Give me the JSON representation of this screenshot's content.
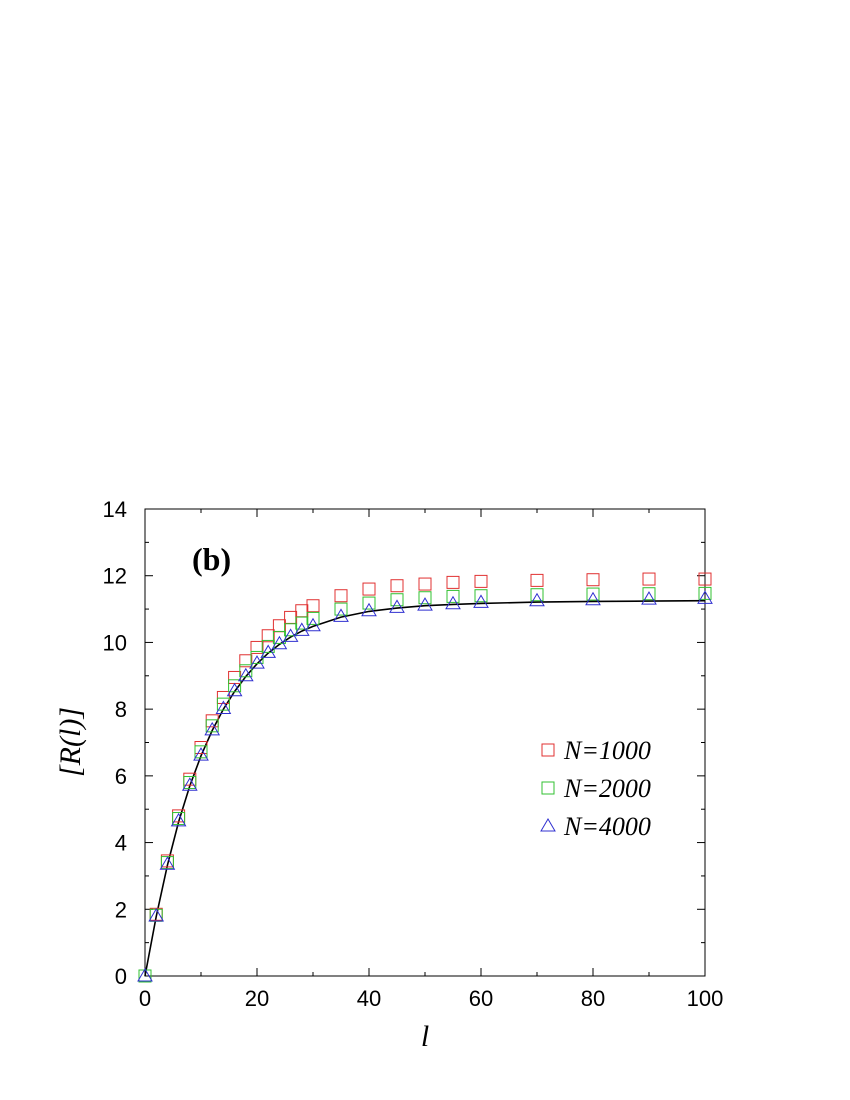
{
  "chart_data": {
    "type": "scatter",
    "panel_label": "(b)",
    "xlabel": "l",
    "ylabel": "[R(l)]",
    "xlim": [
      0,
      100
    ],
    "ylim": [
      0,
      14
    ],
    "x_ticks": [
      "0",
      "20",
      "40",
      "60",
      "80",
      "100"
    ],
    "y_ticks": [
      "0",
      "2",
      "4",
      "6",
      "8",
      "10",
      "12",
      "14"
    ],
    "grid": false,
    "legend_position": "center-right",
    "x": [
      0,
      2,
      4,
      6,
      8,
      10,
      12,
      14,
      16,
      18,
      20,
      22,
      24,
      26,
      28,
      30,
      35,
      40,
      45,
      50,
      55,
      60,
      70,
      80,
      90,
      100
    ],
    "series": [
      {
        "name": "N=1000",
        "marker": "square",
        "color": "#e03030",
        "values": [
          0,
          1.85,
          3.45,
          4.8,
          5.9,
          6.85,
          7.65,
          8.35,
          8.95,
          9.45,
          9.85,
          10.2,
          10.5,
          10.75,
          10.95,
          11.1,
          11.4,
          11.6,
          11.7,
          11.75,
          11.8,
          11.83,
          11.86,
          11.88,
          11.9,
          11.9
        ]
      },
      {
        "name": "N=2000",
        "marker": "square",
        "color": "#30c030",
        "values": [
          0,
          1.82,
          3.4,
          4.72,
          5.8,
          6.72,
          7.5,
          8.15,
          8.7,
          9.15,
          9.55,
          9.88,
          10.15,
          10.38,
          10.58,
          10.72,
          11.0,
          11.18,
          11.28,
          11.34,
          11.38,
          11.4,
          11.43,
          11.45,
          11.46,
          11.47
        ]
      },
      {
        "name": "N=4000",
        "marker": "triangle",
        "color": "#3030d0",
        "values": [
          0,
          1.8,
          3.35,
          4.65,
          5.72,
          6.62,
          7.38,
          8.02,
          8.55,
          9.0,
          9.38,
          9.7,
          9.96,
          10.18,
          10.36,
          10.5,
          10.78,
          10.95,
          11.05,
          11.12,
          11.16,
          11.2,
          11.25,
          11.28,
          11.3,
          11.32
        ]
      }
    ],
    "fit_curve": {
      "color": "#000000",
      "x": [
        0,
        2,
        4,
        6,
        8,
        10,
        12,
        14,
        16,
        18,
        20,
        22,
        24,
        26,
        28,
        30,
        35,
        40,
        45,
        50,
        55,
        60,
        70,
        80,
        90,
        100
      ],
      "values": [
        0,
        1.78,
        3.32,
        4.62,
        5.7,
        6.6,
        7.36,
        8.0,
        8.53,
        8.98,
        9.36,
        9.68,
        9.94,
        10.16,
        10.34,
        10.48,
        10.76,
        10.93,
        11.03,
        11.1,
        11.14,
        11.17,
        11.21,
        11.23,
        11.24,
        11.25
      ]
    }
  }
}
